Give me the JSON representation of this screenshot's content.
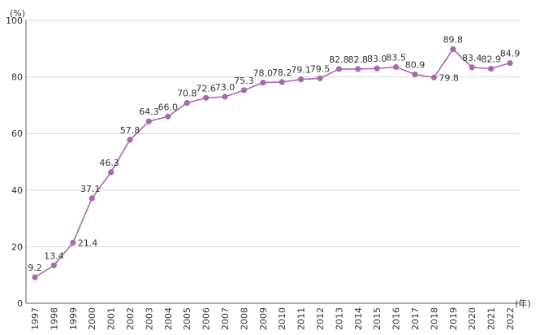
{
  "chart_data": {
    "type": "line",
    "title": "",
    "xlabel": "",
    "ylabel": "",
    "y_unit": "(%)",
    "x_unit": "(年)",
    "ylim": [
      0,
      100
    ],
    "yticks": [
      0,
      20,
      40,
      60,
      80,
      100
    ],
    "grid": true,
    "color": "#a967ad",
    "categories": [
      "1997",
      "1998",
      "1999",
      "2000",
      "2001",
      "2002",
      "2003",
      "2004",
      "2005",
      "2006",
      "2007",
      "2008",
      "2009",
      "2010",
      "2011",
      "2012",
      "2013",
      "2014",
      "2015",
      "2016",
      "2017",
      "2018",
      "2019",
      "2020",
      "2021",
      "2022"
    ],
    "series": [
      {
        "values": [
          9.2,
          13.4,
          21.4,
          37.1,
          46.3,
          57.8,
          64.3,
          66.0,
          70.8,
          72.6,
          73.0,
          75.3,
          78.0,
          78.2,
          79.1,
          79.5,
          82.8,
          82.8,
          83.0,
          83.5,
          80.9,
          79.8,
          89.8,
          83.4,
          82.9,
          84.9
        ],
        "labels": [
          "9.2",
          "13.4",
          "21.4",
          "37.1",
          "46.3",
          "57.8",
          "64.3",
          "66.0",
          "70.8",
          "72.6",
          "73.0",
          "75.3",
          "78.0",
          "78.2",
          "79.1",
          "79.5",
          "82.8",
          "82.8",
          "83.0",
          "83.5",
          "80.9",
          "79.8",
          "89.8",
          "83.4",
          "82.9",
          "84.9"
        ]
      }
    ]
  }
}
